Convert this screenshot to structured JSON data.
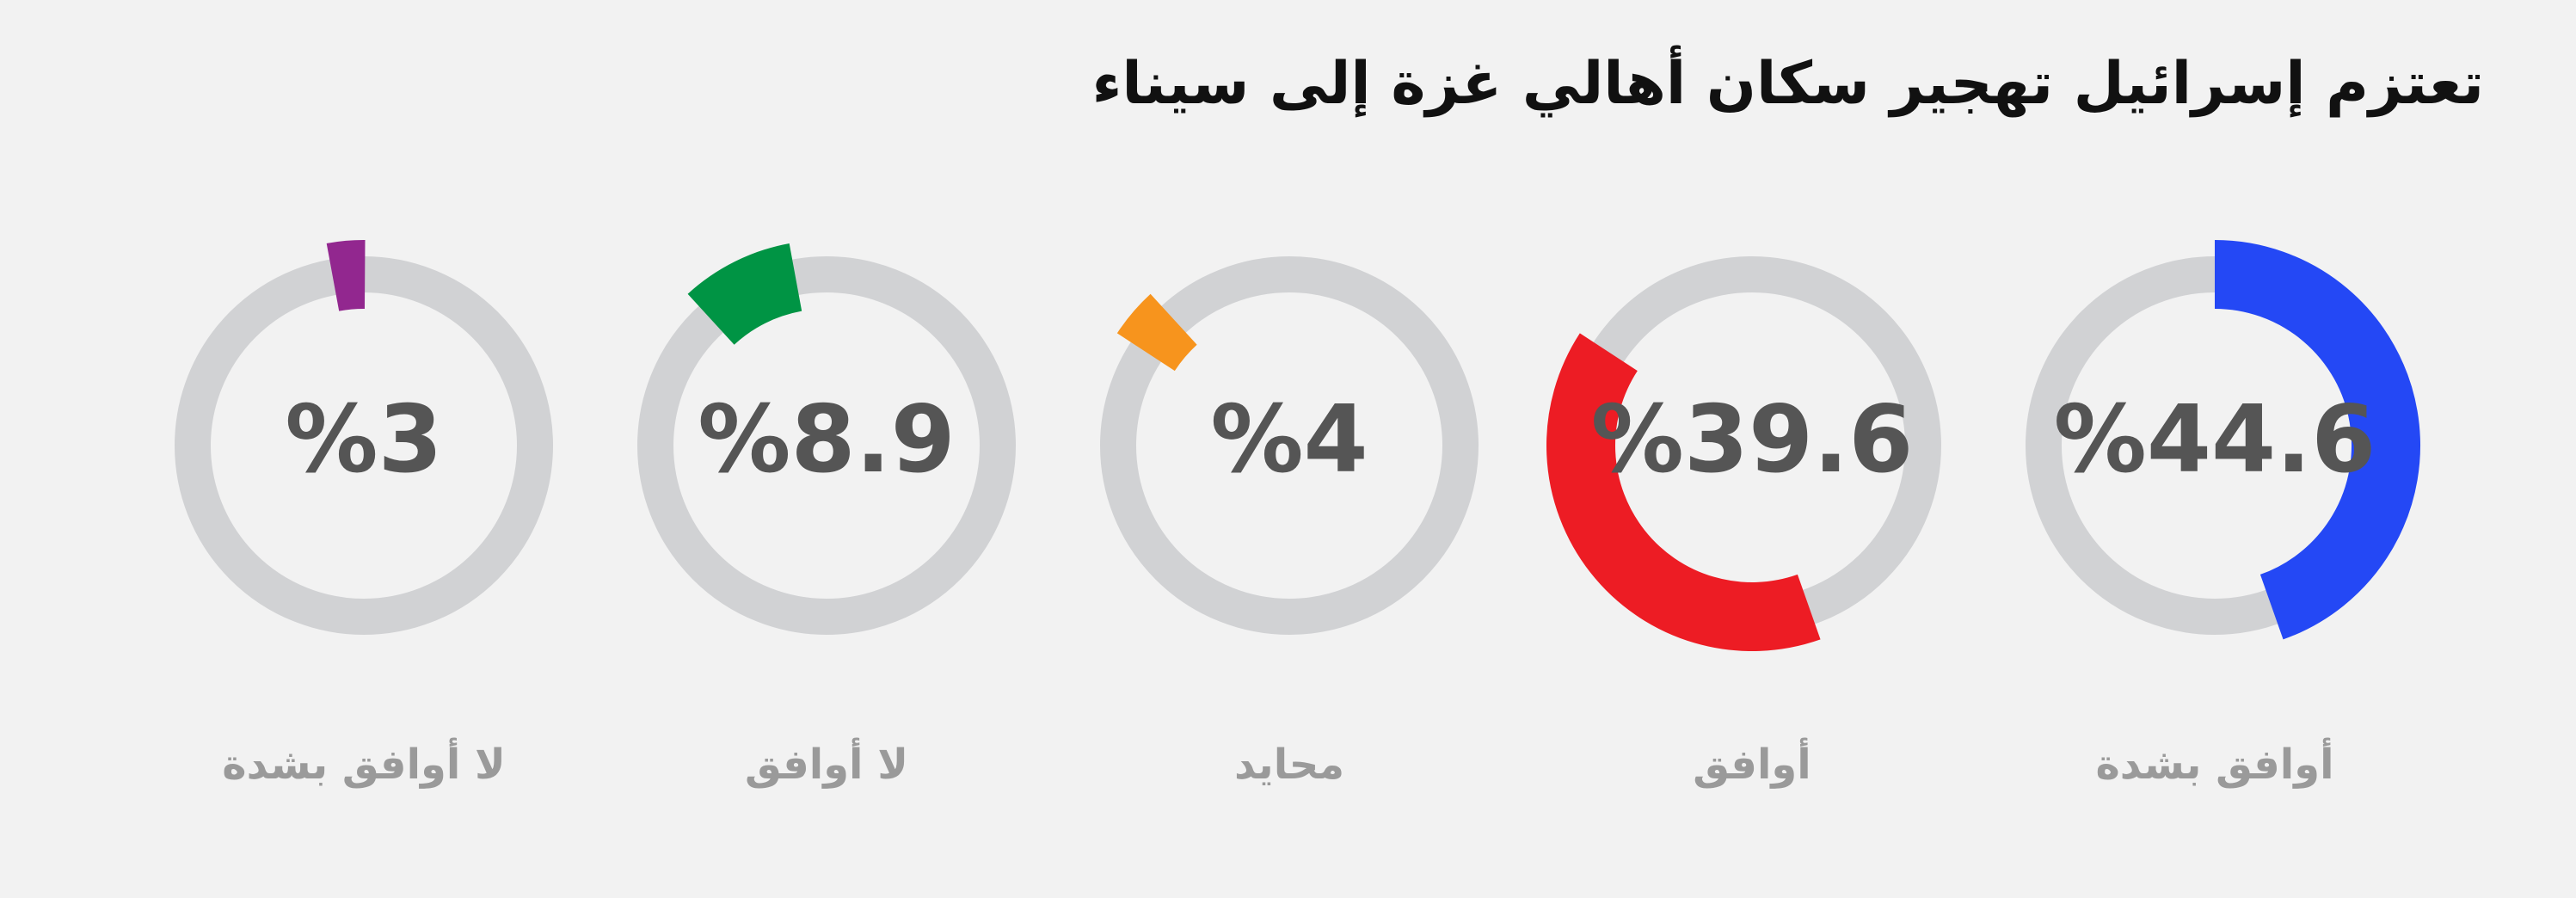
{
  "chart_data": {
    "type": "donut",
    "title": "تعتزم إسرائيل تهجير سكان أهالي غزة إلى سيناء",
    "categories": [
      "أوافق بشدة",
      "أوافق",
      "محايد",
      "لا أوافق",
      "لا أوافق بشدة"
    ],
    "values": [
      44.6,
      39.6,
      4,
      8.9,
      3
    ],
    "value_labels": [
      "%44.6",
      "%39.6",
      "%4",
      "%8.9",
      "%3"
    ],
    "colors": [
      "#2448f5",
      "#ed1c24",
      "#f7941d",
      "#009444",
      "#92278f"
    ]
  }
}
